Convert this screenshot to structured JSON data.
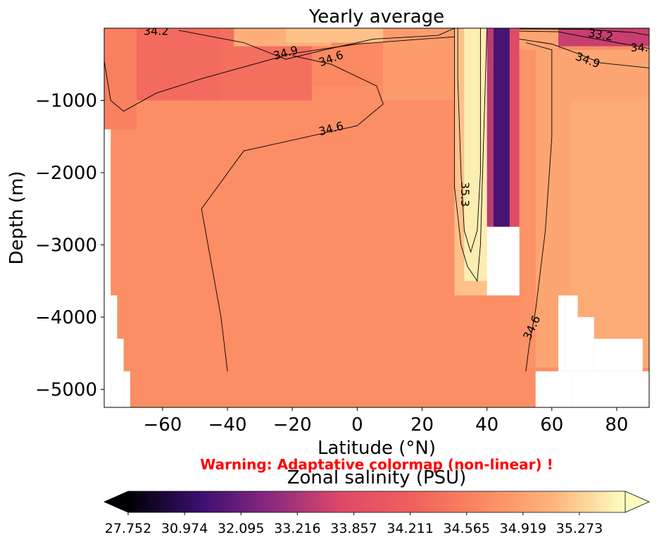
{
  "chart_data": {
    "type": "heatmap",
    "title": "Yearly average",
    "xlabel": "Latitude (°N)",
    "ylabel": "Depth (m)",
    "xlim": [
      -78,
      90
    ],
    "ylim": [
      -5250,
      0
    ],
    "xticks": [
      {
        "value": -60,
        "label": "−60"
      },
      {
        "value": -40,
        "label": "−40"
      },
      {
        "value": -20,
        "label": "−20"
      },
      {
        "value": 0,
        "label": "0"
      },
      {
        "value": 20,
        "label": "20"
      },
      {
        "value": 40,
        "label": "40"
      },
      {
        "value": 60,
        "label": "60"
      },
      {
        "value": 80,
        "label": "80"
      }
    ],
    "yticks": [
      {
        "value": -1000,
        "label": "−1000"
      },
      {
        "value": -2000,
        "label": "−2000"
      },
      {
        "value": -3000,
        "label": "−3000"
      },
      {
        "value": -4000,
        "label": "−4000"
      },
      {
        "value": -5000,
        "label": "−5000"
      }
    ],
    "field_regions": [
      {
        "x0": -78,
        "x1": -68,
        "y0": 0,
        "y1": -1400,
        "value": 34.45
      },
      {
        "x0": -68,
        "x1": -42,
        "y0": 0,
        "y1": -1000,
        "value": 34.2
      },
      {
        "x0": -42,
        "x1": -14,
        "y0": 0,
        "y1": -1200,
        "value": 34.25
      },
      {
        "x0": -14,
        "x1": 8,
        "y0": -100,
        "y1": -800,
        "value": 34.55
      },
      {
        "x0": -50,
        "x1": 30,
        "y0": -1000,
        "y1": -5250,
        "value": 34.6
      },
      {
        "x0": 8,
        "x1": 30,
        "y0": 0,
        "y1": -1000,
        "value": 34.75
      },
      {
        "x0": -38,
        "x1": -8,
        "y0": 0,
        "y1": -250,
        "value": 34.95
      },
      {
        "x0": -22,
        "x1": 8,
        "y0": 0,
        "y1": -200,
        "value": 35.1
      },
      {
        "x0": 30,
        "x1": 42,
        "y0": 0,
        "y1": -3700,
        "value": 35.1
      },
      {
        "x0": 33,
        "x1": 40,
        "y0": 0,
        "y1": -3500,
        "value": 35.35
      },
      {
        "x0": 40,
        "x1": 42,
        "y0": 0,
        "y1": -2750,
        "value": 33.0
      },
      {
        "x0": 42,
        "x1": 47,
        "y0": 0,
        "y1": -2750,
        "value": 30.9
      },
      {
        "x0": 47,
        "x1": 50,
        "y0": 0,
        "y1": -2750,
        "value": 33.5
      },
      {
        "x0": 50,
        "x1": 62,
        "y0": 0,
        "y1": -300,
        "value": 34.85
      },
      {
        "x0": 62,
        "x1": 90,
        "y0": 0,
        "y1": -250,
        "value": 33.2
      },
      {
        "x0": 50,
        "x1": 55,
        "y0": -300,
        "y1": -4700,
        "value": 34.65
      },
      {
        "x0": 55,
        "x1": 90,
        "y0": -300,
        "y1": -4700,
        "value": 34.85
      },
      {
        "x0": 66,
        "x1": 90,
        "y0": -1000,
        "y1": -4700,
        "value": 34.92
      }
    ],
    "masked_regions": [
      {
        "x0": -78,
        "x1": -76,
        "y0": -1400,
        "y1": -5250
      },
      {
        "x0": -76,
        "x1": -74,
        "y0": -3700,
        "y1": -5250
      },
      {
        "x0": -74,
        "x1": -72,
        "y0": -4300,
        "y1": -5250
      },
      {
        "x0": -72,
        "x1": -70,
        "y0": -4750,
        "y1": -5250
      },
      {
        "x0": 40,
        "x1": 42,
        "y0": -2750,
        "y1": -3700
      },
      {
        "x0": 42,
        "x1": 48,
        "y0": -2750,
        "y1": -3700
      },
      {
        "x0": 48,
        "x1": 50,
        "y0": -2750,
        "y1": -3700
      },
      {
        "x0": 55,
        "x1": 66,
        "y0": -4750,
        "y1": -5250
      },
      {
        "x0": 62,
        "x1": 64,
        "y0": -3700,
        "y1": -4750
      },
      {
        "x0": 64,
        "x1": 68,
        "y0": -3700,
        "y1": -4000
      },
      {
        "x0": 64,
        "x1": 73,
        "y0": -4000,
        "y1": -4750
      },
      {
        "x0": 73,
        "x1": 88,
        "y0": -4300,
        "y1": -4750
      },
      {
        "x0": 66,
        "x1": 90,
        "y0": -4750,
        "y1": -5250
      }
    ],
    "contour_labels": [
      {
        "text": "34.2",
        "lat": -62,
        "depth": -50,
        "angle": 0
      },
      {
        "text": "34.9",
        "lat": -22,
        "depth": -350,
        "angle": -15
      },
      {
        "text": "34.6",
        "lat": -8,
        "depth": -430,
        "angle": -20
      },
      {
        "text": "34.6",
        "lat": -8,
        "depth": -1400,
        "angle": -15
      },
      {
        "text": "35.3",
        "lat": 33,
        "depth": -2300,
        "angle": 90
      },
      {
        "text": "34.6",
        "lat": 54,
        "depth": -4150,
        "angle": -65
      },
      {
        "text": "33.2",
        "lat": 75,
        "depth": -100,
        "angle": 10
      },
      {
        "text": "34.9",
        "lat": 71,
        "depth": -450,
        "angle": 20
      },
      {
        "text": "34.",
        "lat": 87,
        "depth": -280,
        "angle": 0
      }
    ],
    "contours": [
      {
        "level": "34.9",
        "points": [
          [
            -55,
            -30
          ],
          [
            -35,
            -200
          ],
          [
            -22,
            -430
          ],
          [
            -10,
            -300
          ],
          [
            5,
            -150
          ],
          [
            25,
            -100
          ],
          [
            30,
            0
          ]
        ]
      },
      {
        "level": "34.6",
        "points": [
          [
            -78,
            -450
          ],
          [
            -76,
            -1000
          ],
          [
            -72,
            -1150
          ],
          [
            -62,
            -900
          ],
          [
            -48,
            -700
          ],
          [
            -20,
            -350
          ],
          [
            0,
            -220
          ],
          [
            20,
            -150
          ],
          [
            30,
            -120
          ]
        ]
      },
      {
        "level": "34.6",
        "points": [
          [
            -40,
            -4750
          ],
          [
            -42,
            -4000
          ],
          [
            -48,
            -2500
          ],
          [
            -35,
            -1700
          ],
          [
            -10,
            -1450
          ],
          [
            0,
            -1350
          ],
          [
            8,
            -1050
          ],
          [
            6,
            -800
          ],
          [
            -8,
            -500
          ],
          [
            -20,
            -380
          ]
        ]
      },
      {
        "level": "35.3",
        "points": [
          [
            31,
            0
          ],
          [
            31,
            -700
          ],
          [
            32,
            -2000
          ],
          [
            33,
            -2800
          ],
          [
            35,
            -3100
          ],
          [
            37,
            -2800
          ],
          [
            38,
            -2000
          ],
          [
            38,
            -500
          ],
          [
            38,
            0
          ]
        ]
      },
      {
        "level": "35.3",
        "points": [
          [
            30,
            0
          ],
          [
            30,
            -2200
          ],
          [
            32,
            -3000
          ],
          [
            34,
            -3300
          ],
          [
            37,
            -3500
          ],
          [
            38,
            -3000
          ],
          [
            39,
            -1500
          ],
          [
            40,
            0
          ]
        ]
      },
      {
        "level": "34.6",
        "points": [
          [
            52,
            -4750
          ],
          [
            53,
            -4400
          ],
          [
            55,
            -3900
          ],
          [
            58,
            -2800
          ],
          [
            60,
            -1500
          ],
          [
            60,
            -700
          ],
          [
            60,
            -300
          ],
          [
            52,
            -200
          ]
        ]
      },
      {
        "level": "34.9",
        "points": [
          [
            50,
            -150
          ],
          [
            60,
            -220
          ],
          [
            68,
            -350
          ],
          [
            75,
            -480
          ],
          [
            90,
            -550
          ]
        ]
      },
      {
        "level": "33.2",
        "points": [
          [
            50,
            -40
          ],
          [
            62,
            -50
          ],
          [
            70,
            -120
          ],
          [
            80,
            -200
          ],
          [
            90,
            -280
          ]
        ]
      },
      {
        "level": "34.2",
        "points": [
          [
            50,
            -10
          ],
          [
            70,
            -15
          ],
          [
            85,
            -60
          ],
          [
            90,
            -100
          ]
        ]
      }
    ],
    "colorbar": {
      "label": "Zonal salinity (PSU)",
      "ticks": [
        "27.752",
        "30.974",
        "32.095",
        "33.216",
        "33.857",
        "34.211",
        "34.565",
        "34.919",
        "35.273"
      ],
      "extend": "both",
      "colormap": "magma"
    }
  },
  "warning": "Warning: Adaptative colormap (non-linear) !"
}
